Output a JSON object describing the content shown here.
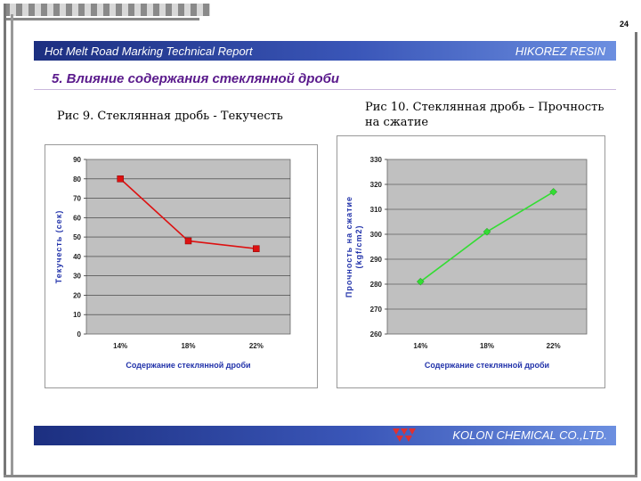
{
  "page_number": "24",
  "header": {
    "left": "Hot Melt Road Marking Technical Report",
    "right": "HIKOREZ RESIN"
  },
  "section_title": "5. Влияние содержания стеклянной дроби",
  "footer": {
    "company": "KOLON CHEMICAL CO.,LTD."
  },
  "colors": {
    "series1": "#dd1111",
    "series2": "#33dd33",
    "header": "#1c2f80",
    "plot_bg": "#c0c0c0"
  },
  "chart_data": [
    {
      "type": "line",
      "title": "Рис 9. Стеклянная дробь - Текучесть",
      "categories": [
        "14%",
        "18%",
        "22%"
      ],
      "series": [
        {
          "name": "Текучесть",
          "values": [
            80,
            48,
            44
          ],
          "color": "#dd1111",
          "marker": "square"
        }
      ],
      "xlabel": "Содержание стеклянной дроби",
      "ylabel": "Текучесть (сек)",
      "ylim": [
        0,
        90
      ],
      "yticks": [
        0,
        10,
        20,
        30,
        40,
        50,
        60,
        70,
        80,
        90
      ],
      "grid": true
    },
    {
      "type": "line",
      "title": "Рис 10. Стеклянная дробь – Прочность на сжатие",
      "categories": [
        "14%",
        "18%",
        "22%"
      ],
      "series": [
        {
          "name": "Прочность на сжатие",
          "values": [
            281,
            301,
            317
          ],
          "color": "#33dd33",
          "marker": "diamond"
        }
      ],
      "xlabel": "Содержание стеклянной дроби",
      "ylabel": "Прочность на сжатие (kgf/cm2)",
      "ylabel_lines": [
        "Прочность на сжатие",
        "(kgf/cm2)"
      ],
      "ylim": [
        260,
        330
      ],
      "yticks": [
        260,
        270,
        280,
        290,
        300,
        310,
        320,
        330
      ],
      "grid": true
    }
  ]
}
